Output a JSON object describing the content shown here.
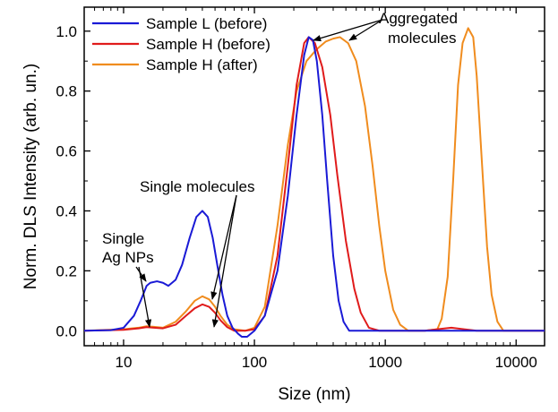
{
  "chart_data": {
    "type": "line",
    "title": "",
    "xlabel": "Size (nm)",
    "ylabel": "Norm. DLS Intensity (arb. un.)",
    "x_scale": "log",
    "xlim": [
      5,
      16500
    ],
    "ylim": [
      -0.05,
      1.08
    ],
    "xticks": [
      10,
      100,
      1000,
      10000
    ],
    "xtick_labels": [
      "10",
      "100",
      "1000",
      "10000"
    ],
    "yticks": [
      0.0,
      0.2,
      0.4,
      0.6,
      0.8,
      1.0
    ],
    "ytick_labels": [
      "0.0",
      "0.2",
      "0.4",
      "0.6",
      "0.8",
      "1.0"
    ],
    "grid": false,
    "legend": "top-left",
    "series": [
      {
        "name": "Sample L (before)",
        "color": "#1a1ad6",
        "points": [
          [
            5,
            0.0
          ],
          [
            8,
            0.002
          ],
          [
            10,
            0.01
          ],
          [
            12,
            0.05
          ],
          [
            13.5,
            0.1
          ],
          [
            15,
            0.15
          ],
          [
            16,
            0.16
          ],
          [
            18,
            0.165
          ],
          [
            20,
            0.16
          ],
          [
            22,
            0.15
          ],
          [
            25,
            0.17
          ],
          [
            28,
            0.22
          ],
          [
            32,
            0.31
          ],
          [
            36,
            0.38
          ],
          [
            40,
            0.4
          ],
          [
            44,
            0.38
          ],
          [
            48,
            0.31
          ],
          [
            52,
            0.22
          ],
          [
            57,
            0.12
          ],
          [
            62,
            0.05
          ],
          [
            68,
            0.01
          ],
          [
            75,
            -0.01
          ],
          [
            80,
            -0.02
          ],
          [
            88,
            -0.02
          ],
          [
            100,
            0.0
          ],
          [
            120,
            0.05
          ],
          [
            150,
            0.2
          ],
          [
            180,
            0.45
          ],
          [
            210,
            0.72
          ],
          [
            240,
            0.92
          ],
          [
            260,
            0.98
          ],
          [
            280,
            0.97
          ],
          [
            300,
            0.9
          ],
          [
            330,
            0.72
          ],
          [
            360,
            0.5
          ],
          [
            400,
            0.25
          ],
          [
            440,
            0.1
          ],
          [
            480,
            0.03
          ],
          [
            530,
            0.0
          ],
          [
            1000,
            0.0
          ],
          [
            16500,
            0.0
          ]
        ]
      },
      {
        "name": "Sample H (before)",
        "color": "#e01b1b",
        "points": [
          [
            5,
            0.0
          ],
          [
            10,
            0.003
          ],
          [
            13,
            0.008
          ],
          [
            15,
            0.012
          ],
          [
            17,
            0.01
          ],
          [
            20,
            0.008
          ],
          [
            25,
            0.02
          ],
          [
            30,
            0.05
          ],
          [
            35,
            0.075
          ],
          [
            40,
            0.088
          ],
          [
            45,
            0.08
          ],
          [
            50,
            0.06
          ],
          [
            55,
            0.035
          ],
          [
            62,
            0.012
          ],
          [
            70,
            0.0
          ],
          [
            85,
            0.0
          ],
          [
            100,
            0.005
          ],
          [
            120,
            0.05
          ],
          [
            150,
            0.25
          ],
          [
            180,
            0.55
          ],
          [
            210,
            0.82
          ],
          [
            240,
            0.96
          ],
          [
            260,
            0.98
          ],
          [
            290,
            0.96
          ],
          [
            330,
            0.88
          ],
          [
            380,
            0.72
          ],
          [
            430,
            0.52
          ],
          [
            500,
            0.3
          ],
          [
            580,
            0.14
          ],
          [
            650,
            0.06
          ],
          [
            750,
            0.01
          ],
          [
            900,
            0.0
          ],
          [
            2000,
            0.0
          ],
          [
            2500,
            0.005
          ],
          [
            3200,
            0.01
          ],
          [
            4000,
            0.005
          ],
          [
            5000,
            0.0
          ],
          [
            16500,
            0.0
          ]
        ]
      },
      {
        "name": "Sample H (after)",
        "color": "#f08c1e",
        "points": [
          [
            5,
            0.0
          ],
          [
            10,
            0.005
          ],
          [
            13,
            0.01
          ],
          [
            15,
            0.015
          ],
          [
            17,
            0.013
          ],
          [
            20,
            0.01
          ],
          [
            25,
            0.03
          ],
          [
            30,
            0.065
          ],
          [
            35,
            0.1
          ],
          [
            40,
            0.115
          ],
          [
            45,
            0.105
          ],
          [
            50,
            0.08
          ],
          [
            55,
            0.05
          ],
          [
            62,
            0.02
          ],
          [
            70,
            0.005
          ],
          [
            85,
            0.0
          ],
          [
            100,
            0.01
          ],
          [
            120,
            0.08
          ],
          [
            150,
            0.35
          ],
          [
            180,
            0.62
          ],
          [
            210,
            0.8
          ],
          [
            250,
            0.9
          ],
          [
            300,
            0.94
          ],
          [
            350,
            0.965
          ],
          [
            400,
            0.975
          ],
          [
            450,
            0.98
          ],
          [
            520,
            0.96
          ],
          [
            600,
            0.9
          ],
          [
            700,
            0.75
          ],
          [
            800,
            0.55
          ],
          [
            900,
            0.35
          ],
          [
            1000,
            0.2
          ],
          [
            1150,
            0.07
          ],
          [
            1300,
            0.02
          ],
          [
            1500,
            0.0
          ],
          [
            2000,
            0.0
          ],
          [
            2500,
            0.005
          ],
          [
            2700,
            0.04
          ],
          [
            3000,
            0.18
          ],
          [
            3300,
            0.5
          ],
          [
            3600,
            0.82
          ],
          [
            3900,
            0.96
          ],
          [
            4300,
            1.01
          ],
          [
            4700,
            0.98
          ],
          [
            5000,
            0.85
          ],
          [
            5500,
            0.55
          ],
          [
            6000,
            0.28
          ],
          [
            6500,
            0.12
          ],
          [
            7200,
            0.03
          ],
          [
            8000,
            0.0
          ],
          [
            16500,
            0.0
          ]
        ]
      }
    ],
    "annotations": [
      {
        "id": "single_np_1",
        "text": "Single"
      },
      {
        "id": "single_np_2",
        "text": "Ag NPs"
      },
      {
        "id": "single_mol",
        "text": "Single molecules"
      },
      {
        "id": "agg_1",
        "text": "Aggregated"
      },
      {
        "id": "agg_2",
        "text": "molecules"
      }
    ]
  }
}
